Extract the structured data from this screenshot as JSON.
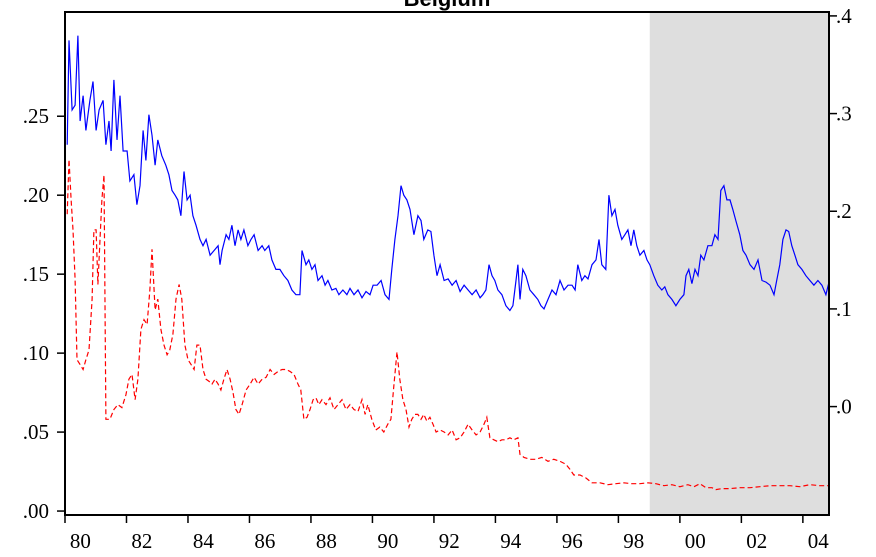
{
  "chart_data": {
    "type": "line",
    "title": "Belgium",
    "xlim": [
      1980,
      2004.85
    ],
    "xticks": [
      {
        "value": 1980,
        "label": "80"
      },
      {
        "value": 1982,
        "label": "82"
      },
      {
        "value": 1984,
        "label": "84"
      },
      {
        "value": 1986,
        "label": "86"
      },
      {
        "value": 1988,
        "label": "88"
      },
      {
        "value": 1990,
        "label": "90"
      },
      {
        "value": 1992,
        "label": "92"
      },
      {
        "value": 1994,
        "label": "94"
      },
      {
        "value": 1996,
        "label": "96"
      },
      {
        "value": 1998,
        "label": "98"
      },
      {
        "value": 2000,
        "label": "00"
      },
      {
        "value": 2002,
        "label": "02"
      },
      {
        "value": 2004,
        "label": "04"
      }
    ],
    "ylim": [
      -0.0025,
      0.316
    ],
    "yticks": [
      {
        "value": 0,
        "label": ".00"
      },
      {
        "value": 0.05,
        "label": ".05"
      },
      {
        "value": 0.1,
        "label": ".10"
      },
      {
        "value": 0.15,
        "label": ".15"
      },
      {
        "value": 0.2,
        "label": ".20"
      },
      {
        "value": 0.25,
        "label": ".25"
      }
    ],
    "y2lim": [
      -0.111,
      0.404
    ],
    "y2ticks": [
      {
        "value": 0,
        "label": ".0"
      },
      {
        "value": 0.1,
        "label": ".1"
      },
      {
        "value": 0.2,
        "label": ".2"
      },
      {
        "value": 0.3,
        "label": ".3"
      },
      {
        "value": 0.4,
        "label": ".4"
      }
    ],
    "shade": [
      1999.02,
      2004.85
    ],
    "shade_color": "#dedede",
    "series": [
      {
        "color": "#0000ff",
        "dashed": false,
        "x": [
          1980.07,
          1980.13,
          1980.23,
          1980.33,
          1980.42,
          1980.49,
          1980.59,
          1980.68,
          1980.81,
          1980.91,
          1981.01,
          1981.11,
          1981.24,
          1981.33,
          1981.43,
          1981.5,
          1981.59,
          1981.69,
          1981.79,
          1981.89,
          1982.02,
          1982.11,
          1982.24,
          1982.34,
          1982.44,
          1982.54,
          1982.63,
          1982.73,
          1982.83,
          1982.93,
          1983.02,
          1983.15,
          1983.28,
          1983.38,
          1983.48,
          1983.58,
          1983.67,
          1983.77,
          1983.87,
          1983.97,
          1984.07,
          1984.16,
          1984.26,
          1984.39,
          1984.49,
          1984.59,
          1984.72,
          1984.85,
          1984.98,
          1985.04,
          1985.11,
          1985.24,
          1985.33,
          1985.43,
          1985.53,
          1985.63,
          1985.72,
          1985.82,
          1985.95,
          1986.05,
          1986.15,
          1986.28,
          1986.41,
          1986.5,
          1986.63,
          1986.73,
          1986.86,
          1986.99,
          1987.12,
          1987.25,
          1987.38,
          1987.51,
          1987.64,
          1987.71,
          1987.84,
          1987.93,
          1988.03,
          1988.13,
          1988.23,
          1988.36,
          1988.46,
          1988.55,
          1988.68,
          1988.81,
          1988.91,
          1989.04,
          1989.17,
          1989.27,
          1989.4,
          1989.53,
          1989.66,
          1989.79,
          1989.92,
          1990.02,
          1990.15,
          1990.28,
          1990.41,
          1990.54,
          1990.63,
          1990.73,
          1990.83,
          1990.93,
          1991.02,
          1991.12,
          1991.22,
          1991.35,
          1991.48,
          1991.58,
          1991.67,
          1991.8,
          1991.9,
          1992.0,
          1992.1,
          1992.2,
          1992.33,
          1992.46,
          1992.59,
          1992.72,
          1992.85,
          1992.98,
          1993.11,
          1993.24,
          1993.37,
          1993.5,
          1993.59,
          1993.69,
          1993.79,
          1993.89,
          1993.98,
          1994.08,
          1994.21,
          1994.34,
          1994.47,
          1994.57,
          1994.67,
          1994.73,
          1994.8,
          1994.89,
          1994.99,
          1995.12,
          1995.25,
          1995.38,
          1995.48,
          1995.58,
          1995.71,
          1995.84,
          1995.97,
          1996.1,
          1996.23,
          1996.36,
          1996.49,
          1996.59,
          1996.68,
          1996.81,
          1996.91,
          1997.01,
          1997.14,
          1997.27,
          1997.37,
          1997.46,
          1997.59,
          1997.69,
          1997.79,
          1997.89,
          1997.98,
          1998.11,
          1998.21,
          1998.31,
          1998.41,
          1998.5,
          1998.6,
          1998.7,
          1998.83,
          1998.93,
          1999.02,
          1999.15,
          1999.28,
          1999.41,
          1999.51,
          1999.61,
          1999.74,
          1999.87,
          2000.0,
          2000.13,
          2000.2,
          2000.29,
          2000.39,
          2000.49,
          2000.59,
          2000.68,
          2000.78,
          2000.91,
          2001.04,
          2001.14,
          2001.24,
          2001.33,
          2001.43,
          2001.53,
          2001.63,
          2001.72,
          2001.82,
          2001.95,
          2002.05,
          2002.15,
          2002.28,
          2002.41,
          2002.54,
          2002.67,
          2002.8,
          2002.93,
          2003.06,
          2003.15,
          2003.25,
          2003.35,
          2003.45,
          2003.54,
          2003.64,
          2003.74,
          2003.84,
          2003.97,
          2004.1,
          2004.23,
          2004.36,
          2004.49,
          2004.62,
          2004.75,
          2004.85
        ],
        "values": [
          0.232,
          0.298,
          0.254,
          0.257,
          0.301,
          0.247,
          0.263,
          0.241,
          0.26,
          0.272,
          0.241,
          0.254,
          0.26,
          0.232,
          0.247,
          0.228,
          0.273,
          0.235,
          0.263,
          0.228,
          0.228,
          0.209,
          0.213,
          0.194,
          0.206,
          0.241,
          0.222,
          0.251,
          0.238,
          0.219,
          0.235,
          0.225,
          0.219,
          0.213,
          0.203,
          0.2,
          0.197,
          0.187,
          0.215,
          0.197,
          0.2,
          0.187,
          0.181,
          0.172,
          0.168,
          0.172,
          0.162,
          0.165,
          0.168,
          0.156,
          0.165,
          0.175,
          0.172,
          0.181,
          0.168,
          0.178,
          0.172,
          0.178,
          0.168,
          0.172,
          0.175,
          0.165,
          0.168,
          0.165,
          0.168,
          0.159,
          0.153,
          0.153,
          0.149,
          0.146,
          0.14,
          0.137,
          0.137,
          0.165,
          0.156,
          0.159,
          0.153,
          0.156,
          0.146,
          0.149,
          0.143,
          0.146,
          0.14,
          0.141,
          0.137,
          0.14,
          0.137,
          0.141,
          0.137,
          0.14,
          0.135,
          0.139,
          0.137,
          0.143,
          0.143,
          0.146,
          0.137,
          0.134,
          0.153,
          0.172,
          0.187,
          0.206,
          0.2,
          0.197,
          0.191,
          0.175,
          0.187,
          0.184,
          0.172,
          0.178,
          0.177,
          0.162,
          0.149,
          0.156,
          0.146,
          0.147,
          0.143,
          0.146,
          0.139,
          0.143,
          0.14,
          0.137,
          0.14,
          0.135,
          0.137,
          0.14,
          0.156,
          0.149,
          0.146,
          0.14,
          0.137,
          0.13,
          0.127,
          0.13,
          0.146,
          0.156,
          0.134,
          0.153,
          0.149,
          0.14,
          0.137,
          0.134,
          0.13,
          0.128,
          0.134,
          0.14,
          0.137,
          0.146,
          0.14,
          0.143,
          0.143,
          0.14,
          0.156,
          0.146,
          0.149,
          0.147,
          0.156,
          0.159,
          0.172,
          0.156,
          0.153,
          0.2,
          0.187,
          0.191,
          0.181,
          0.172,
          0.175,
          0.178,
          0.168,
          0.178,
          0.168,
          0.162,
          0.165,
          0.159,
          0.156,
          0.149,
          0.143,
          0.14,
          0.142,
          0.137,
          0.134,
          0.13,
          0.134,
          0.137,
          0.149,
          0.153,
          0.144,
          0.153,
          0.149,
          0.162,
          0.159,
          0.168,
          0.168,
          0.175,
          0.172,
          0.203,
          0.206,
          0.197,
          0.197,
          0.191,
          0.184,
          0.175,
          0.165,
          0.162,
          0.156,
          0.153,
          0.159,
          0.146,
          0.145,
          0.143,
          0.137,
          0.146,
          0.156,
          0.172,
          0.178,
          0.177,
          0.168,
          0.162,
          0.156,
          0.153,
          0.149,
          0.146,
          0.143,
          0.146,
          0.143,
          0.137,
          0.145
        ]
      },
      {
        "color": "#ff0000",
        "dashed": true,
        "axis": "y2",
        "x": [
          1980.07,
          1980.13,
          1980.2,
          1980.26,
          1980.33,
          1980.39,
          1980.49,
          1980.59,
          1980.68,
          1980.78,
          1980.88,
          1980.94,
          1981.01,
          1981.07,
          1981.14,
          1981.2,
          1981.27,
          1981.33,
          1981.46,
          1981.59,
          1981.72,
          1981.85,
          1981.98,
          1982.08,
          1982.18,
          1982.28,
          1982.37,
          1982.47,
          1982.57,
          1982.67,
          1982.76,
          1982.83,
          1982.93,
          1983.02,
          1983.12,
          1983.22,
          1983.32,
          1983.41,
          1983.51,
          1983.61,
          1983.71,
          1983.8,
          1983.9,
          1984.0,
          1984.1,
          1984.2,
          1984.29,
          1984.39,
          1984.49,
          1984.59,
          1984.68,
          1984.78,
          1984.88,
          1984.98,
          1985.07,
          1985.17,
          1985.27,
          1985.37,
          1985.46,
          1985.56,
          1985.66,
          1985.76,
          1985.89,
          1986.02,
          1986.15,
          1986.28,
          1986.41,
          1986.54,
          1986.67,
          1986.8,
          1986.93,
          1987.06,
          1987.19,
          1987.32,
          1987.45,
          1987.58,
          1987.67,
          1987.77,
          1987.87,
          1987.97,
          1988.07,
          1988.16,
          1988.26,
          1988.36,
          1988.49,
          1988.62,
          1988.75,
          1988.88,
          1989.01,
          1989.14,
          1989.27,
          1989.4,
          1989.53,
          1989.66,
          1989.76,
          1989.85,
          1989.98,
          1990.11,
          1990.24,
          1990.37,
          1990.5,
          1990.6,
          1990.7,
          1990.8,
          1990.89,
          1990.99,
          1991.09,
          1991.19,
          1991.28,
          1991.38,
          1991.48,
          1991.58,
          1991.67,
          1991.77,
          1991.87,
          1991.97,
          1992.07,
          1992.2,
          1992.33,
          1992.46,
          1992.59,
          1992.72,
          1992.85,
          1992.98,
          1993.11,
          1993.24,
          1993.37,
          1993.5,
          1993.63,
          1993.72,
          1993.82,
          1993.95,
          1994.08,
          1994.21,
          1994.34,
          1994.47,
          1994.6,
          1994.73,
          1994.8,
          1994.93,
          1995.12,
          1995.32,
          1995.51,
          1995.71,
          1995.9,
          1996.1,
          1996.29,
          1996.42,
          1996.55,
          1996.75,
          1996.94,
          1997.14,
          1997.4,
          1997.66,
          1997.92,
          1998.18,
          1998.44,
          1998.7,
          1998.96,
          1999.22,
          1999.48,
          1999.74,
          2000.0,
          2000.26,
          2000.46,
          2000.65,
          2000.85,
          2001.04,
          2001.17,
          2001.37,
          2001.63,
          2001.95,
          2002.28,
          2002.6,
          2002.93,
          2003.25,
          2003.58,
          2003.9,
          2004.23,
          2004.55,
          2004.85
        ],
        "values": [
          0.197,
          0.253,
          0.212,
          0.181,
          0.13,
          0.048,
          0.043,
          0.038,
          0.048,
          0.058,
          0.11,
          0.181,
          0.181,
          0.125,
          0.171,
          0.212,
          0.237,
          -0.013,
          -0.013,
          -0.003,
          0.002,
          -0.001,
          0.012,
          0.028,
          0.033,
          0.007,
          0.028,
          0.079,
          0.089,
          0.084,
          0.12,
          0.161,
          0.099,
          0.11,
          0.079,
          0.063,
          0.053,
          0.058,
          0.074,
          0.11,
          0.125,
          0.11,
          0.063,
          0.048,
          0.043,
          0.038,
          0.063,
          0.063,
          0.038,
          0.028,
          0.026,
          0.023,
          0.028,
          0.023,
          0.017,
          0.028,
          0.038,
          0.028,
          0.015,
          -0.003,
          -0.008,
          0.002,
          0.017,
          0.023,
          0.03,
          0.023,
          0.028,
          0.03,
          0.038,
          0.033,
          0.036,
          0.038,
          0.038,
          0.036,
          0.033,
          0.023,
          0.017,
          -0.013,
          -0.011,
          -0.003,
          0.007,
          0.009,
          0.002,
          0.007,
          0.002,
          0.009,
          -0.003,
          0.002,
          0.007,
          -0.003,
          0.002,
          -0.003,
          -0.005,
          0.007,
          -0.008,
          0.002,
          -0.013,
          -0.024,
          -0.021,
          -0.026,
          -0.018,
          -0.013,
          0.023,
          0.056,
          0.028,
          0.007,
          -0.003,
          -0.021,
          -0.013,
          -0.008,
          -0.008,
          -0.013,
          -0.008,
          -0.015,
          -0.011,
          -0.018,
          -0.026,
          -0.024,
          -0.026,
          -0.029,
          -0.024,
          -0.034,
          -0.032,
          -0.026,
          -0.018,
          -0.024,
          -0.029,
          -0.026,
          -0.018,
          -0.011,
          -0.032,
          -0.034,
          -0.036,
          -0.034,
          -0.034,
          -0.032,
          -0.034,
          -0.032,
          -0.049,
          -0.052,
          -0.054,
          -0.054,
          -0.052,
          -0.056,
          -0.054,
          -0.056,
          -0.059,
          -0.064,
          -0.07,
          -0.07,
          -0.073,
          -0.078,
          -0.078,
          -0.08,
          -0.079,
          -0.078,
          -0.079,
          -0.079,
          -0.078,
          -0.079,
          -0.081,
          -0.08,
          -0.082,
          -0.08,
          -0.082,
          -0.079,
          -0.083,
          -0.083,
          -0.085,
          -0.084,
          -0.084,
          -0.083,
          -0.083,
          -0.082,
          -0.081,
          -0.081,
          -0.081,
          -0.082,
          -0.08,
          -0.081,
          -0.081
        ]
      }
    ]
  }
}
